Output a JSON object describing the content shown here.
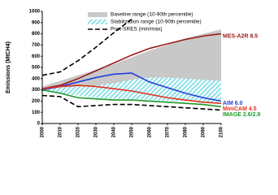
{
  "chart_data": {
    "type": "line",
    "ylabel": "Emissions (MtCH4)",
    "x": [
      2000,
      2010,
      2020,
      2030,
      2040,
      2050,
      2060,
      2070,
      2080,
      2090,
      2100
    ],
    "xlim": [
      2000,
      2100
    ],
    "xticks": [
      2000,
      2010,
      2020,
      2030,
      2040,
      2050,
      2060,
      2070,
      2080,
      2090,
      2100
    ],
    "ylim": [
      0,
      1000
    ],
    "yticks": [
      0,
      100,
      200,
      300,
      400,
      500,
      600,
      700,
      800,
      900,
      1000
    ],
    "bands": [
      {
        "name": "Baseline range (10-90th percentile)",
        "color": "#c8c8c8",
        "upper": [
          330,
          380,
          430,
          480,
          530,
          590,
          650,
          700,
          760,
          800,
          840
        ],
        "lower": [
          300,
          310,
          320,
          330,
          340,
          350,
          355,
          360,
          365,
          370,
          380
        ]
      },
      {
        "name": "Stabilization range (10-90th percentile)",
        "color": "#8fe0e8",
        "upper": [
          300,
          320,
          330,
          340,
          360,
          390,
          410,
          410,
          400,
          390,
          380
        ],
        "lower": [
          290,
          270,
          250,
          230,
          220,
          220,
          210,
          200,
          200,
          190,
          190
        ]
      }
    ],
    "post_sres": {
      "name": "Post-SRES (min/max)",
      "color": "#000000",
      "max": [
        430,
        460,
        560,
        680,
        810,
        930,
        null,
        null,
        null,
        null,
        null
      ],
      "min": [
        250,
        240,
        150,
        160,
        170,
        170,
        160,
        150,
        140,
        130,
        120
      ]
    },
    "series": [
      {
        "name": "MES-A2R 8.5",
        "color": "#9b1a1a",
        "values": [
          310,
          340,
          400,
          470,
          540,
          610,
          670,
          710,
          750,
          780,
          800
        ]
      },
      {
        "name": "AIM 6.0",
        "color": "#1f3fd6",
        "values": [
          300,
          330,
          370,
          410,
          440,
          450,
          370,
          320,
          270,
          230,
          200
        ]
      },
      {
        "name": "MiniCAM 4.5",
        "color": "#e0301e",
        "values": [
          310,
          330,
          340,
          330,
          310,
          290,
          260,
          230,
          210,
          190,
          180
        ]
      },
      {
        "name": "IMAGE 2.6/2.9",
        "color": "#1a9a2a",
        "values": [
          300,
          270,
          230,
          220,
          210,
          210,
          200,
          190,
          180,
          170,
          150
        ]
      }
    ]
  }
}
